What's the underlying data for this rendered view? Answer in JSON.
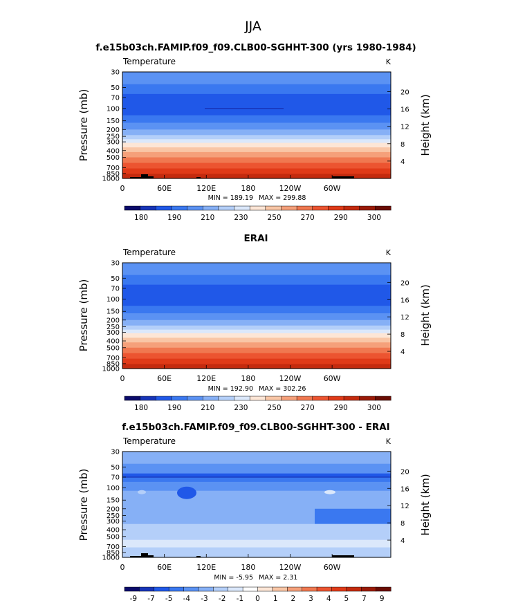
{
  "page_title": "JJA",
  "colors": {
    "temp": [
      "#0b0b6b",
      "#1734b8",
      "#2058e8",
      "#3a78f0",
      "#5b92f3",
      "#86b0f6",
      "#b4cff9",
      "#dbe8fb",
      "#fde6d6",
      "#f9c6a6",
      "#f5a07a",
      "#f07850",
      "#ec5430",
      "#e03a18",
      "#c42a0e",
      "#9a1a08",
      "#6a0c04"
    ],
    "diff": [
      "#0b0b6b",
      "#1734b8",
      "#2058e8",
      "#3a78f0",
      "#5b92f3",
      "#86b0f6",
      "#b4cff9",
      "#dbe8fb",
      "#ffffff",
      "#fde6d6",
      "#f9c6a6",
      "#f5a07a",
      "#f07850",
      "#ec5430",
      "#e03a18",
      "#c42a0e",
      "#9a1a08",
      "#6a0c04"
    ],
    "topo": "#000000"
  },
  "chart_data": [
    {
      "type": "heatmap",
      "title": "f.e15b03ch.FAMIP.f09_f09.CLB00-SGHHT-300 (yrs 1980-1984)",
      "variable": "Temperature",
      "units": "K",
      "ylabel": "Pressure  (mb)",
      "ylabel_right": "Height  (km)",
      "x_ticks": [
        "0",
        "60E",
        "120E",
        "180",
        "120W",
        "60W"
      ],
      "pressure_ticks": [
        "30",
        "50",
        "70",
        "100",
        "150",
        "200",
        "250",
        "300",
        "400",
        "500",
        "700",
        "850",
        "1000"
      ],
      "height_ticks": [
        "20",
        "16",
        "12",
        "8",
        "4"
      ],
      "min_label": "MIN = 189.19",
      "max_label": "MAX = 299.88",
      "colorbar_labels": [
        "180",
        "190",
        "210",
        "230",
        "250",
        "270",
        "290",
        "300"
      ],
      "has_topography": true,
      "field": "model"
    },
    {
      "type": "heatmap",
      "title": "ERAI",
      "variable": "Temperature",
      "units": "K",
      "ylabel": "Pressure  (mb)",
      "ylabel_right": "Height  (km)",
      "x_ticks": [
        "0",
        "60E",
        "120E",
        "180",
        "120W",
        "60W"
      ],
      "pressure_ticks": [
        "30",
        "50",
        "70",
        "100",
        "150",
        "200",
        "250",
        "300",
        "400",
        "500",
        "700",
        "850",
        "1000"
      ],
      "height_ticks": [
        "20",
        "16",
        "12",
        "8",
        "4"
      ],
      "min_label": "MIN = 192.90",
      "max_label": "MAX = 302.26",
      "colorbar_labels": [
        "180",
        "190",
        "210",
        "230",
        "250",
        "270",
        "290",
        "300"
      ],
      "has_topography": false,
      "field": "obs"
    },
    {
      "type": "heatmap",
      "title": "f.e15b03ch.FAMIP.f09_f09.CLB00-SGHHT-300 - ERAI",
      "variable": "Temperature",
      "units": "K",
      "ylabel": "Pressure  (mb)",
      "ylabel_right": "Height  (km)",
      "x_ticks": [
        "0",
        "60E",
        "120E",
        "180",
        "120W",
        "60W"
      ],
      "pressure_ticks": [
        "30",
        "50",
        "70",
        "100",
        "150",
        "200",
        "250",
        "300",
        "400",
        "500",
        "700",
        "850",
        "1000"
      ],
      "height_ticks": [
        "20",
        "16",
        "12",
        "8",
        "4"
      ],
      "min_label": "MIN =  -5.95",
      "max_label": "MAX =   2.31",
      "colorbar_labels": [
        "-9",
        "-7",
        "-5",
        "-4",
        "-3",
        "-2",
        "-1",
        "0",
        "1",
        "2",
        "3",
        "4",
        "5",
        "7",
        "9"
      ],
      "has_topography": true,
      "field": "diff"
    }
  ]
}
